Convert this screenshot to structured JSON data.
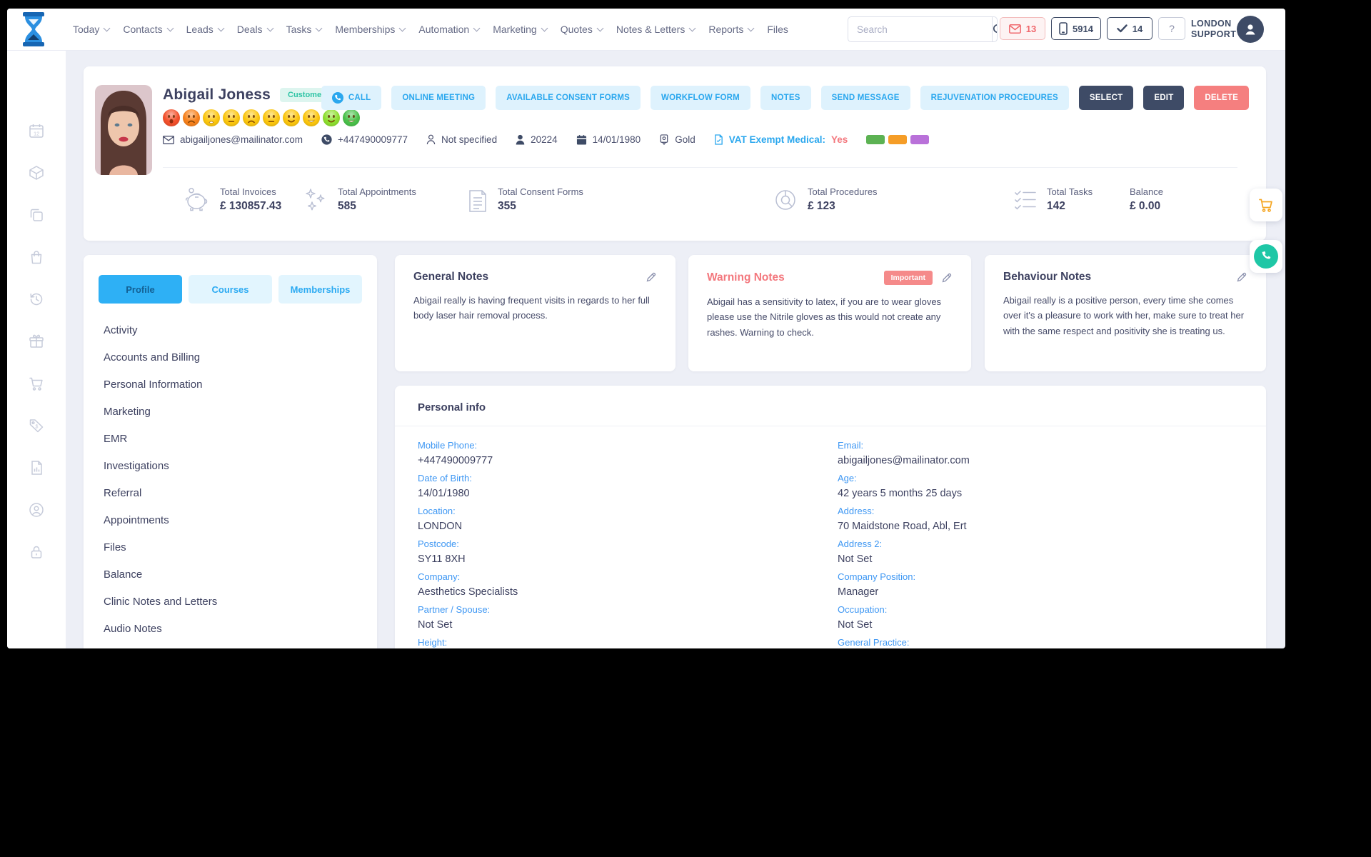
{
  "colors": {
    "accent_blue": "#2aa7ee",
    "light_blue_bg": "#def2fd",
    "dark_navy": "#3e4b66",
    "red": "#f57f7f",
    "teal_badge": "#2ec4a5",
    "label_blue": "#3e97f3",
    "label_chips": [
      "#5cb253",
      "#f59d27",
      "#b971d9"
    ],
    "moods": [
      {
        "color": "#f4512c",
        "mouth": "frown-open"
      },
      {
        "color": "#f8821d",
        "mouth": "frown"
      },
      {
        "color": "#fcc70f",
        "mouth": "sad-open"
      },
      {
        "color": "#fcc70f",
        "mouth": "neutral"
      },
      {
        "color": "#fcc70f",
        "mouth": "frown"
      },
      {
        "color": "#fcc70f",
        "mouth": "neutral"
      },
      {
        "color": "#fcc70f",
        "mouth": "smile"
      },
      {
        "color": "#fcc70f",
        "mouth": "grin"
      },
      {
        "color": "#8fe030",
        "mouth": "smile"
      },
      {
        "color": "#4bc24b",
        "mouth": "grin"
      }
    ]
  },
  "topbar": {
    "nav_items": [
      {
        "label": "Today",
        "dropdown": true
      },
      {
        "label": "Contacts",
        "dropdown": true
      },
      {
        "label": "Leads",
        "dropdown": true
      },
      {
        "label": "Deals",
        "dropdown": true
      },
      {
        "label": "Tasks",
        "dropdown": true
      },
      {
        "label": "Memberships",
        "dropdown": true
      },
      {
        "label": "Automation",
        "dropdown": true
      },
      {
        "label": "Marketing",
        "dropdown": true
      },
      {
        "label": "Quotes",
        "dropdown": true
      },
      {
        "label": "Notes & Letters",
        "dropdown": true
      },
      {
        "label": "Reports",
        "dropdown": true
      },
      {
        "label": "Files",
        "dropdown": false
      }
    ],
    "search_placeholder": "Search",
    "counters": {
      "messages": "13",
      "calls": "5914",
      "tasks": "14"
    },
    "help_label": "?",
    "user_line1": "LONDON",
    "user_line2": "SUPPORT"
  },
  "sidebar": {
    "icons": [
      "calendar",
      "package",
      "copy",
      "shopping-bag",
      "history",
      "gift",
      "cart",
      "price-tag",
      "report",
      "account",
      "lock"
    ]
  },
  "profile": {
    "name": "Abigail Joness",
    "type_badge": "Customer",
    "contact": {
      "email": "abigailjones@mailinator.com",
      "phone": "+447490009777",
      "practitioner": "Not specified",
      "client_id": "20224",
      "dob": "14/01/1980",
      "tier": "Gold",
      "vat_label": "VAT Exempt Medical:",
      "vat_value": "Yes"
    },
    "actions": {
      "call": "CALL",
      "online_meeting": "ONLINE MEETING",
      "consent_forms": "AVAILABLE CONSENT FORMS",
      "workflow_form": "WORKFLOW FORM",
      "notes": "NOTES",
      "send_message": "SEND MESSAGE",
      "rejuvenation": "REJUVENATION PROCEDURES",
      "select": "SELECT",
      "edit": "EDIT",
      "delete": "DELETE"
    },
    "stats": [
      {
        "icon": "piggy-bank",
        "label": "Total Invoices",
        "value": "£ 130857.43"
      },
      {
        "icon": "sparkles",
        "label": "Total Appointments",
        "value": "585"
      },
      {
        "icon": "document",
        "label": "Total Consent Forms",
        "value": "355"
      },
      {
        "icon": "donut-chart",
        "label": "Total Procedures",
        "value": "£ 123"
      },
      {
        "icon": "checklist",
        "label": "Total Tasks",
        "value": "142"
      },
      {
        "icon": "none",
        "label": "Balance",
        "value": "£ 0.00"
      }
    ]
  },
  "left_panel": {
    "tabs": [
      {
        "label": "Profile",
        "active": true
      },
      {
        "label": "Courses",
        "active": false
      },
      {
        "label": "Memberships",
        "active": false
      }
    ],
    "menu": [
      "Activity",
      "Accounts and Billing",
      "Personal Information",
      "Marketing",
      "EMR",
      "Investigations",
      "Referral",
      "Appointments",
      "Files",
      "Balance",
      "Clinic Notes and Letters",
      "Audio Notes"
    ]
  },
  "notes_cards": [
    {
      "title": "General Notes",
      "badge": "",
      "body": "Abigail really is having frequent visits in regards to her full body laser hair removal process."
    },
    {
      "title": "Warning Notes",
      "badge": "Important",
      "body": "Abigail has a sensitivity to latex, if you are to wear gloves please use the Nitrile gloves as this would not create any rashes. Warning to check."
    },
    {
      "title": "Behaviour Notes",
      "badge": "",
      "body": "Abigail really is a positive person, every time she comes over it's a pleasure to work with her, make sure to treat her with the same respect and positivity she is treating us."
    }
  ],
  "personal_info": {
    "title": "Personal info",
    "left": [
      {
        "label": "Mobile Phone:",
        "value": "+447490009777"
      },
      {
        "label": "Date of Birth:",
        "value": "14/01/1980"
      },
      {
        "label": "Location:",
        "value": "LONDON"
      },
      {
        "label": "Postcode:",
        "value": "SY11 8XH"
      },
      {
        "label": "Company:",
        "value": "Aesthetics Specialists"
      },
      {
        "label": "Partner / Spouse:",
        "value": "Not Set"
      },
      {
        "label": "Height:",
        "value": ""
      }
    ],
    "right": [
      {
        "label": "Email:",
        "value": "abigailjones@mailinator.com"
      },
      {
        "label": "Age:",
        "value": "42 years 5 months 25 days"
      },
      {
        "label": "Address:",
        "value": "70 Maidstone Road, Abl, Ert"
      },
      {
        "label": "Address 2:",
        "value": "Not Set"
      },
      {
        "label": "Company Position:",
        "value": "Manager"
      },
      {
        "label": "Occupation:",
        "value": "Not Set"
      },
      {
        "label": "General Practice:",
        "value": ""
      }
    ]
  }
}
